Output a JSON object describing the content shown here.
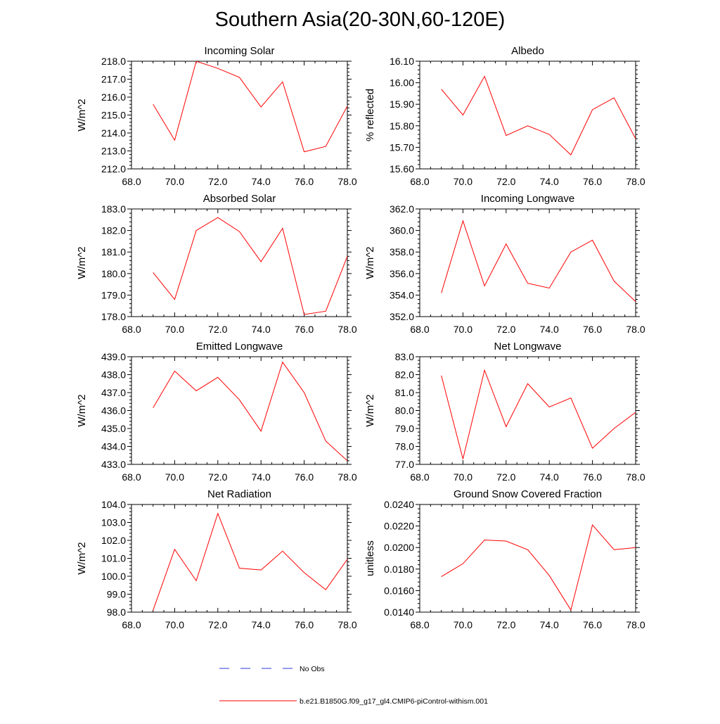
{
  "title": "Southern Asia(20-30N,60-120E)",
  "colors": {
    "model": "#ff0000",
    "obs": "#2a3bd6",
    "axis": "#000000"
  },
  "legend": {
    "obs_label": "No Obs",
    "model_label": "b.e21.B1850G.f09_g17_gl4.CMIP6-piControl-withism.001"
  },
  "chart_data": [
    {
      "type": "line",
      "title": "Incoming Solar",
      "ylabel": "W/m^2",
      "xlim": [
        68,
        78
      ],
      "ylim": [
        212,
        218
      ],
      "xticks": [
        "68.0",
        "70.0",
        "72.0",
        "74.0",
        "76.0",
        "78.0"
      ],
      "yticks": [
        "212.0",
        "213.0",
        "214.0",
        "215.0",
        "216.0",
        "217.0",
        "218.0"
      ],
      "series": [
        {
          "name": "b.e21.B1850G.f09_g17_gl4.CMIP6-piControl-withism.001",
          "x": [
            69,
            70,
            71,
            72,
            73,
            74,
            75,
            76,
            77,
            78
          ],
          "y": [
            215.6,
            213.6,
            218.0,
            217.6,
            217.1,
            215.45,
            216.85,
            212.95,
            213.25,
            215.5
          ]
        }
      ]
    },
    {
      "type": "line",
      "title": "Albedo",
      "ylabel": "% reflected",
      "xlim": [
        68,
        78
      ],
      "ylim": [
        15.6,
        16.1
      ],
      "xticks": [
        "68.0",
        "70.0",
        "72.0",
        "74.0",
        "76.0",
        "78.0"
      ],
      "yticks": [
        "15.60",
        "15.70",
        "15.80",
        "15.90",
        "16.00",
        "16.10"
      ],
      "series": [
        {
          "name": "b.e21.B1850G.f09_g17_gl4.CMIP6-piControl-withism.001",
          "x": [
            69,
            70,
            71,
            72,
            73,
            74,
            75,
            76,
            77,
            78
          ],
          "y": [
            15.97,
            15.85,
            16.03,
            15.755,
            15.8,
            15.76,
            15.665,
            15.875,
            15.93,
            15.74
          ]
        }
      ]
    },
    {
      "type": "line",
      "title": "Absorbed Solar",
      "ylabel": "W/m^2",
      "xlim": [
        68,
        78
      ],
      "ylim": [
        178,
        183
      ],
      "xticks": [
        "68.0",
        "70.0",
        "72.0",
        "74.0",
        "76.0",
        "78.0"
      ],
      "yticks": [
        "178.0",
        "179.0",
        "180.0",
        "181.0",
        "182.0",
        "183.0"
      ],
      "series": [
        {
          "name": "b.e21.B1850G.f09_g17_gl4.CMIP6-piControl-withism.001",
          "x": [
            69,
            70,
            71,
            72,
            73,
            74,
            75,
            76,
            77,
            78
          ],
          "y": [
            180.05,
            178.8,
            182.0,
            182.6,
            181.95,
            180.55,
            182.1,
            178.1,
            178.25,
            180.8
          ]
        }
      ]
    },
    {
      "type": "line",
      "title": "Incoming Longwave",
      "ylabel": "W/m^2",
      "xlim": [
        68,
        78
      ],
      "ylim": [
        352,
        362
      ],
      "xticks": [
        "68.0",
        "70.0",
        "72.0",
        "74.0",
        "76.0",
        "78.0"
      ],
      "yticks": [
        "352.0",
        "354.0",
        "356.0",
        "358.0",
        "360.0",
        "362.0"
      ],
      "series": [
        {
          "name": "b.e21.B1850G.f09_g17_gl4.CMIP6-piControl-withism.001",
          "x": [
            69,
            70,
            71,
            72,
            73,
            74,
            75,
            76,
            77,
            78
          ],
          "y": [
            354.2,
            360.9,
            354.85,
            358.75,
            355.1,
            354.65,
            358.0,
            359.1,
            355.3,
            353.4
          ]
        }
      ]
    },
    {
      "type": "line",
      "title": "Emitted Longwave",
      "ylabel": "W/m^2",
      "xlim": [
        68,
        78
      ],
      "ylim": [
        433,
        439
      ],
      "xticks": [
        "68.0",
        "70.0",
        "72.0",
        "74.0",
        "76.0",
        "78.0"
      ],
      "yticks": [
        "433.0",
        "434.0",
        "435.0",
        "436.0",
        "437.0",
        "438.0",
        "439.0"
      ],
      "series": [
        {
          "name": "b.e21.B1850G.f09_g17_gl4.CMIP6-piControl-withism.001",
          "x": [
            69,
            70,
            71,
            72,
            73,
            74,
            75,
            76,
            77,
            78
          ],
          "y": [
            436.15,
            438.2,
            437.1,
            437.85,
            436.6,
            434.85,
            438.7,
            437.0,
            434.3,
            433.2
          ]
        }
      ]
    },
    {
      "type": "line",
      "title": "Net Longwave",
      "ylabel": "W/m^2",
      "xlim": [
        68,
        78
      ],
      "ylim": [
        77,
        83
      ],
      "xticks": [
        "68.0",
        "70.0",
        "72.0",
        "74.0",
        "76.0",
        "78.0"
      ],
      "yticks": [
        "77.0",
        "78.0",
        "79.0",
        "80.0",
        "81.0",
        "82.0",
        "83.0"
      ],
      "series": [
        {
          "name": "b.e21.B1850G.f09_g17_gl4.CMIP6-piControl-withism.001",
          "x": [
            69,
            70,
            71,
            72,
            73,
            74,
            75,
            76,
            77,
            78
          ],
          "y": [
            81.95,
            77.3,
            82.25,
            79.1,
            81.5,
            80.2,
            80.7,
            77.9,
            79.0,
            79.9
          ]
        }
      ]
    },
    {
      "type": "line",
      "title": "Net Radiation",
      "ylabel": "W/m^2",
      "xlim": [
        68,
        78
      ],
      "ylim": [
        98,
        104
      ],
      "xticks": [
        "68.0",
        "70.0",
        "72.0",
        "74.0",
        "76.0",
        "78.0"
      ],
      "yticks": [
        "98.0",
        "99.0",
        "100.0",
        "101.0",
        "102.0",
        "103.0",
        "104.0"
      ],
      "series": [
        {
          "name": "b.e21.B1850G.f09_g17_gl4.CMIP6-piControl-withism.001",
          "x": [
            69,
            70,
            71,
            72,
            73,
            74,
            75,
            76,
            77,
            78
          ],
          "y": [
            98.1,
            101.5,
            99.75,
            103.5,
            100.45,
            100.35,
            101.4,
            100.2,
            99.25,
            100.95
          ]
        }
      ]
    },
    {
      "type": "line",
      "title": "Ground Snow Covered Fraction",
      "ylabel": "unitless",
      "xlim": [
        68,
        78
      ],
      "ylim": [
        0.014,
        0.024
      ],
      "xticks": [
        "68.0",
        "70.0",
        "72.0",
        "74.0",
        "76.0",
        "78.0"
      ],
      "yticks": [
        "0.0140",
        "0.0160",
        "0.0180",
        "0.0200",
        "0.0220",
        "0.0240"
      ],
      "series": [
        {
          "name": "b.e21.B1850G.f09_g17_gl4.CMIP6-piControl-withism.001",
          "x": [
            69,
            70,
            71,
            72,
            73,
            74,
            75,
            76,
            77,
            78
          ],
          "y": [
            0.0173,
            0.0185,
            0.0207,
            0.0206,
            0.0198,
            0.0174,
            0.0142,
            0.0221,
            0.0198,
            0.02
          ]
        }
      ]
    }
  ]
}
